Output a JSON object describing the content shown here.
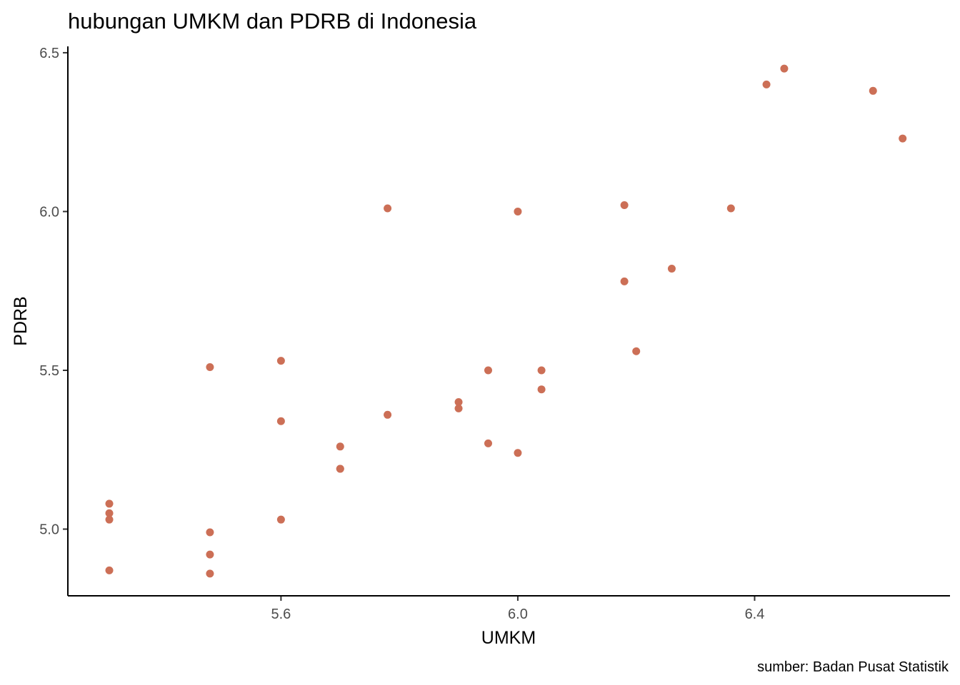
{
  "chart_data": {
    "type": "scatter",
    "title": "hubungan UMKM dan PDRB di Indonesia",
    "xlabel": "UMKM",
    "ylabel": "PDRB",
    "caption": "sumber: Badan Pusat Statistik",
    "xlim": [
      5.24,
      6.73
    ],
    "ylim": [
      4.79,
      6.52
    ],
    "xticks": [
      5.6,
      6.0,
      6.4
    ],
    "xtick_labels": [
      "5.6",
      "6.0",
      "6.4"
    ],
    "yticks": [
      5.0,
      5.5,
      6.0,
      6.5
    ],
    "ytick_labels": [
      "5.0",
      "5.5",
      "6.0",
      "6.5"
    ],
    "grid": false,
    "point_color": "#cc6f56",
    "points": [
      {
        "x": 5.31,
        "y": 5.08
      },
      {
        "x": 5.31,
        "y": 5.05
      },
      {
        "x": 5.31,
        "y": 5.03
      },
      {
        "x": 5.31,
        "y": 4.87
      },
      {
        "x": 5.48,
        "y": 5.51
      },
      {
        "x": 5.48,
        "y": 4.99
      },
      {
        "x": 5.48,
        "y": 4.92
      },
      {
        "x": 5.48,
        "y": 4.86
      },
      {
        "x": 5.6,
        "y": 5.53
      },
      {
        "x": 5.6,
        "y": 5.34
      },
      {
        "x": 5.6,
        "y": 5.03
      },
      {
        "x": 5.7,
        "y": 5.26
      },
      {
        "x": 5.7,
        "y": 5.19
      },
      {
        "x": 5.7,
        "y": 5.19
      },
      {
        "x": 5.78,
        "y": 6.01
      },
      {
        "x": 5.78,
        "y": 5.36
      },
      {
        "x": 5.9,
        "y": 5.4
      },
      {
        "x": 5.9,
        "y": 5.38
      },
      {
        "x": 5.95,
        "y": 5.5
      },
      {
        "x": 5.95,
        "y": 5.27
      },
      {
        "x": 6.0,
        "y": 6.0
      },
      {
        "x": 6.0,
        "y": 5.24
      },
      {
        "x": 6.04,
        "y": 5.5
      },
      {
        "x": 6.04,
        "y": 5.44
      },
      {
        "x": 6.18,
        "y": 6.02
      },
      {
        "x": 6.18,
        "y": 5.78
      },
      {
        "x": 6.2,
        "y": 5.56
      },
      {
        "x": 6.26,
        "y": 5.82
      },
      {
        "x": 6.36,
        "y": 6.01
      },
      {
        "x": 6.42,
        "y": 6.4
      },
      {
        "x": 6.45,
        "y": 6.45
      },
      {
        "x": 6.6,
        "y": 6.38
      },
      {
        "x": 6.65,
        "y": 6.23
      }
    ]
  }
}
